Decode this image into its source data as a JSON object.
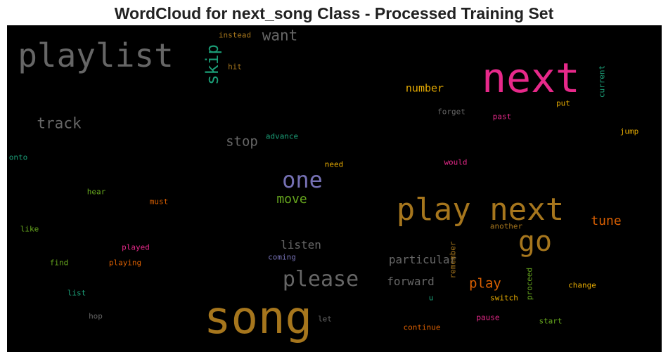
{
  "chart_data": {
    "type": "wordcloud",
    "title": "WordCloud for next_song Class - Processed Training Set",
    "background": "#000000",
    "words": [
      {
        "text": "playlist",
        "color": "#666666",
        "weight": 46
      },
      {
        "text": "next",
        "color": "#e7298a",
        "weight": 58
      },
      {
        "text": "song",
        "color": "#a6761d",
        "weight": 64
      },
      {
        "text": "play next",
        "color": "#a6761d",
        "weight": 44
      },
      {
        "text": "one",
        "color": "#7570b3",
        "weight": 32
      },
      {
        "text": "go",
        "color": "#a6761d",
        "weight": 40
      },
      {
        "text": "please",
        "color": "#666666",
        "weight": 30
      },
      {
        "text": "skip",
        "color": "#1b9e77",
        "weight": 24
      },
      {
        "text": "want",
        "color": "#666666",
        "weight": 21
      },
      {
        "text": "track",
        "color": "#666666",
        "weight": 21
      },
      {
        "text": "stop",
        "color": "#666666",
        "weight": 19
      },
      {
        "text": "move",
        "color": "#66a61e",
        "weight": 18
      },
      {
        "text": "tune",
        "color": "#d95f02",
        "weight": 18
      },
      {
        "text": "play",
        "color": "#d95f02",
        "weight": 19
      },
      {
        "text": "listen",
        "color": "#666666",
        "weight": 16
      },
      {
        "text": "particular",
        "color": "#666666",
        "weight": 16
      },
      {
        "text": "forward",
        "color": "#666666",
        "weight": 16
      },
      {
        "text": "number",
        "color": "#e6ab02",
        "weight": 15
      },
      {
        "text": "instead",
        "color": "#a6761d",
        "weight": 11
      },
      {
        "text": "hit",
        "color": "#a6761d",
        "weight": 11
      },
      {
        "text": "current",
        "color": "#1b9e77",
        "weight": 11
      },
      {
        "text": "put",
        "color": "#e6ab02",
        "weight": 11
      },
      {
        "text": "forget",
        "color": "#666666",
        "weight": 11
      },
      {
        "text": "past",
        "color": "#e7298a",
        "weight": 11
      },
      {
        "text": "jump",
        "color": "#e6ab02",
        "weight": 11
      },
      {
        "text": "advance",
        "color": "#1b9e77",
        "weight": 11
      },
      {
        "text": "onto",
        "color": "#1b9e77",
        "weight": 11
      },
      {
        "text": "need",
        "color": "#e6ab02",
        "weight": 11
      },
      {
        "text": "would",
        "color": "#e7298a",
        "weight": 11
      },
      {
        "text": "hear",
        "color": "#66a61e",
        "weight": 11
      },
      {
        "text": "must",
        "color": "#d95f02",
        "weight": 11
      },
      {
        "text": "like",
        "color": "#66a61e",
        "weight": 11
      },
      {
        "text": "another",
        "color": "#a6761d",
        "weight": 11
      },
      {
        "text": "played",
        "color": "#e7298a",
        "weight": 11
      },
      {
        "text": "coming",
        "color": "#7570b3",
        "weight": 11
      },
      {
        "text": "remember",
        "color": "#a6761d",
        "weight": 11
      },
      {
        "text": "find",
        "color": "#66a61e",
        "weight": 11
      },
      {
        "text": "playing",
        "color": "#d95f02",
        "weight": 11
      },
      {
        "text": "list",
        "color": "#1b9e77",
        "weight": 11
      },
      {
        "text": "proceed",
        "color": "#66a61e",
        "weight": 11
      },
      {
        "text": "change",
        "color": "#e6ab02",
        "weight": 11
      },
      {
        "text": "u",
        "color": "#1b9e77",
        "weight": 11
      },
      {
        "text": "switch",
        "color": "#e6ab02",
        "weight": 11
      },
      {
        "text": "hop",
        "color": "#666666",
        "weight": 11
      },
      {
        "text": "let",
        "color": "#666666",
        "weight": 11
      },
      {
        "text": "pause",
        "color": "#e7298a",
        "weight": 11
      },
      {
        "text": "start",
        "color": "#66a61e",
        "weight": 11
      },
      {
        "text": "continue",
        "color": "#d95f02",
        "weight": 11
      }
    ]
  }
}
